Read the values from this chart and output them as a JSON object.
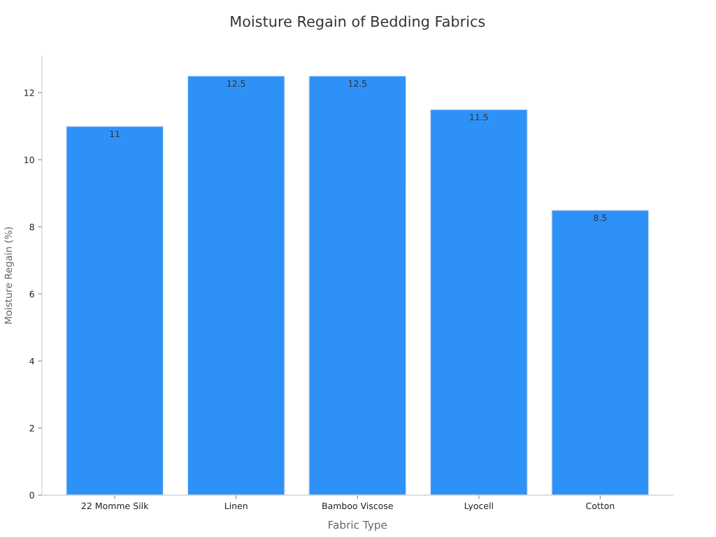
{
  "chart_data": {
    "type": "bar",
    "title": "Moisture Regain of Bedding Fabrics",
    "xlabel": "Fabric Type",
    "ylabel": "Moisture Regain (%)",
    "categories": [
      "22 Momme Silk",
      "Linen",
      "Bamboo Viscose",
      "Lyocell",
      "Cotton"
    ],
    "values": [
      11,
      12.5,
      12.5,
      11.5,
      8.5
    ],
    "color": "#2e91f8",
    "ylim": [
      0,
      13.1
    ],
    "yticks": [
      0,
      2,
      4,
      6,
      8,
      10,
      12
    ],
    "grid": false,
    "data_labels": true
  }
}
